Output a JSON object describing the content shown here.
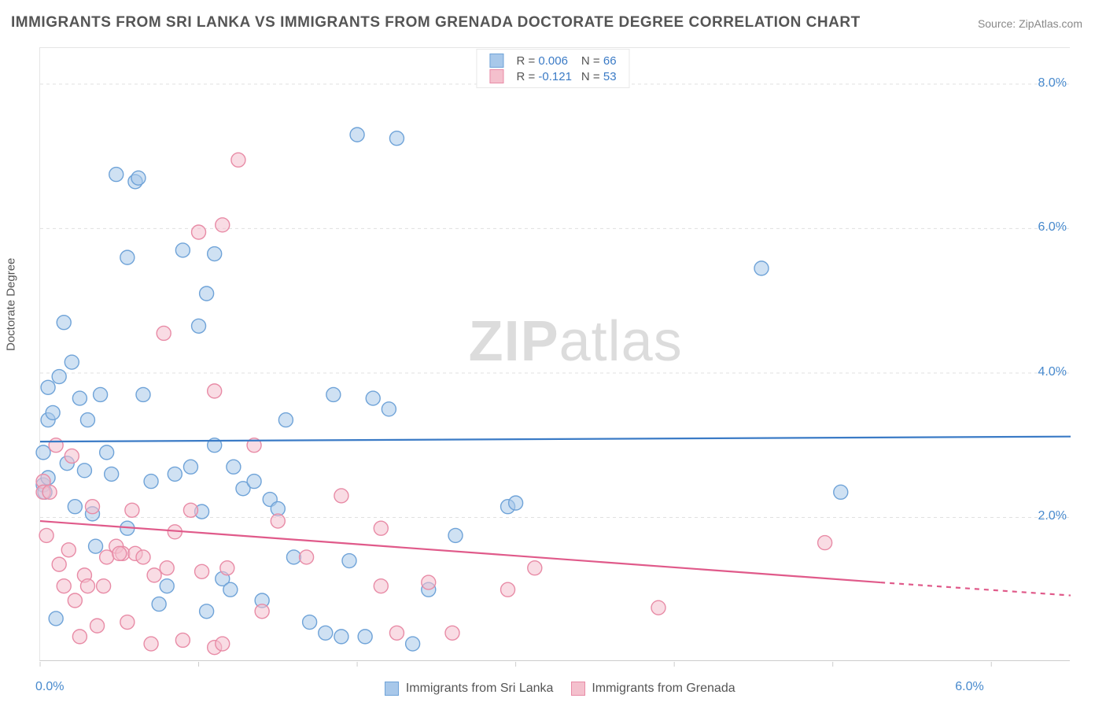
{
  "title": "IMMIGRANTS FROM SRI LANKA VS IMMIGRANTS FROM GRENADA DOCTORATE DEGREE CORRELATION CHART",
  "source_label": "Source: ZipAtlas.com",
  "y_axis_label": "Doctorate Degree",
  "watermark": {
    "bold": "ZIP",
    "rest": "atlas"
  },
  "chart": {
    "type": "scatter-with-regression",
    "background_color": "#ffffff",
    "grid_color": "#e0e0e0",
    "axis_font_color": "#4789cd",
    "x_range": [
      0,
      6.5
    ],
    "y_range": [
      0,
      8.5
    ],
    "y_ticks": [
      2.0,
      4.0,
      6.0,
      8.0
    ],
    "y_tick_labels": [
      "2.0%",
      "4.0%",
      "6.0%",
      "8.0%"
    ],
    "x_ticks": [
      0,
      1,
      2,
      3,
      4,
      5,
      6
    ],
    "x_tick_labels": {
      "0": "0.0%",
      "6": "6.0%"
    },
    "marker_radius": 9,
    "marker_opacity": 0.55,
    "line_width": 2.2
  },
  "series": [
    {
      "id": "sri_lanka",
      "label": "Immigrants from Sri Lanka",
      "color_fill": "#a8c8ea",
      "color_stroke": "#6fa3d8",
      "line_color": "#3b7bc6",
      "R": "0.006",
      "N": "66",
      "regression": {
        "x1": 0,
        "y1": 3.05,
        "x2": 6.5,
        "y2": 3.12
      },
      "points": [
        [
          0.02,
          2.9
        ],
        [
          0.02,
          2.45
        ],
        [
          0.03,
          2.35
        ],
        [
          0.05,
          3.35
        ],
        [
          0.05,
          2.55
        ],
        [
          0.08,
          3.45
        ],
        [
          0.1,
          0.6
        ],
        [
          0.12,
          3.95
        ],
        [
          0.15,
          4.7
        ],
        [
          0.17,
          2.75
        ],
        [
          0.2,
          4.15
        ],
        [
          0.22,
          2.15
        ],
        [
          0.25,
          3.65
        ],
        [
          0.28,
          2.65
        ],
        [
          0.3,
          3.35
        ],
        [
          0.33,
          2.05
        ],
        [
          0.05,
          3.8
        ],
        [
          0.38,
          3.7
        ],
        [
          0.42,
          2.9
        ],
        [
          0.45,
          2.6
        ],
        [
          0.48,
          6.75
        ],
        [
          0.6,
          6.65
        ],
        [
          0.55,
          5.6
        ],
        [
          0.55,
          1.85
        ],
        [
          0.62,
          6.7
        ],
        [
          0.65,
          3.7
        ],
        [
          0.7,
          2.5
        ],
        [
          0.75,
          0.8
        ],
        [
          0.8,
          1.05
        ],
        [
          0.85,
          2.6
        ],
        [
          0.9,
          5.7
        ],
        [
          0.95,
          2.7
        ],
        [
          1.0,
          4.65
        ],
        [
          1.02,
          2.08
        ],
        [
          1.05,
          5.1
        ],
        [
          1.1,
          5.65
        ],
        [
          1.1,
          3.0
        ],
        [
          1.15,
          1.15
        ],
        [
          1.2,
          1.0
        ],
        [
          1.22,
          2.7
        ],
        [
          1.28,
          2.4
        ],
        [
          1.35,
          2.5
        ],
        [
          1.4,
          0.85
        ],
        [
          1.45,
          2.25
        ],
        [
          1.5,
          2.12
        ],
        [
          1.55,
          3.35
        ],
        [
          1.6,
          1.45
        ],
        [
          1.05,
          0.7
        ],
        [
          1.8,
          0.4
        ],
        [
          1.85,
          3.7
        ],
        [
          1.9,
          0.35
        ],
        [
          1.95,
          1.4
        ],
        [
          2.0,
          7.3
        ],
        [
          2.05,
          0.35
        ],
        [
          2.1,
          3.65
        ],
        [
          2.2,
          3.5
        ],
        [
          2.25,
          7.25
        ],
        [
          2.35,
          0.25
        ],
        [
          2.45,
          1.0
        ],
        [
          2.62,
          1.75
        ],
        [
          2.95,
          2.15
        ],
        [
          3.0,
          2.2
        ],
        [
          4.55,
          5.45
        ],
        [
          5.05,
          2.35
        ],
        [
          0.35,
          1.6
        ],
        [
          1.7,
          0.55
        ]
      ]
    },
    {
      "id": "grenada",
      "label": "Immigrants from Grenada",
      "color_fill": "#f4c0cd",
      "color_stroke": "#e88ba6",
      "line_color": "#e05a8a",
      "R": "-0.121",
      "N": "53",
      "regression": {
        "x1": 0,
        "y1": 1.95,
        "x2": 5.3,
        "y2": 1.1,
        "x_dash": 6.5,
        "y_dash": 0.92
      },
      "points": [
        [
          0.02,
          2.5
        ],
        [
          0.02,
          2.35
        ],
        [
          0.04,
          1.75
        ],
        [
          0.06,
          2.35
        ],
        [
          0.1,
          3.0
        ],
        [
          0.12,
          1.35
        ],
        [
          0.15,
          1.05
        ],
        [
          0.18,
          1.55
        ],
        [
          0.2,
          2.85
        ],
        [
          0.22,
          0.85
        ],
        [
          0.25,
          0.35
        ],
        [
          0.28,
          1.2
        ],
        [
          0.3,
          1.05
        ],
        [
          0.33,
          2.15
        ],
        [
          0.36,
          0.5
        ],
        [
          0.4,
          1.05
        ],
        [
          0.42,
          1.45
        ],
        [
          0.48,
          1.6
        ],
        [
          0.52,
          1.5
        ],
        [
          0.55,
          0.55
        ],
        [
          0.58,
          2.1
        ],
        [
          0.6,
          1.5
        ],
        [
          0.65,
          1.45
        ],
        [
          0.7,
          0.25
        ],
        [
          0.72,
          1.2
        ],
        [
          0.78,
          4.55
        ],
        [
          0.8,
          1.3
        ],
        [
          0.85,
          1.8
        ],
        [
          0.9,
          0.3
        ],
        [
          0.95,
          2.1
        ],
        [
          1.0,
          5.95
        ],
        [
          1.02,
          1.25
        ],
        [
          1.1,
          3.75
        ],
        [
          1.1,
          0.2
        ],
        [
          1.15,
          6.05
        ],
        [
          1.15,
          0.25
        ],
        [
          1.18,
          1.3
        ],
        [
          1.25,
          6.95
        ],
        [
          1.35,
          3.0
        ],
        [
          1.4,
          0.7
        ],
        [
          1.5,
          1.95
        ],
        [
          1.68,
          1.45
        ],
        [
          1.9,
          2.3
        ],
        [
          2.15,
          1.85
        ],
        [
          2.15,
          1.05
        ],
        [
          2.25,
          0.4
        ],
        [
          2.45,
          1.1
        ],
        [
          2.6,
          0.4
        ],
        [
          2.95,
          1.0
        ],
        [
          3.12,
          1.3
        ],
        [
          3.9,
          0.75
        ],
        [
          4.95,
          1.65
        ],
        [
          0.5,
          1.5
        ]
      ]
    }
  ],
  "legend_top": {
    "r_label": "R =",
    "n_label": "N ="
  },
  "bottom_legend": {
    "items": [
      "sri_lanka",
      "grenada"
    ]
  }
}
